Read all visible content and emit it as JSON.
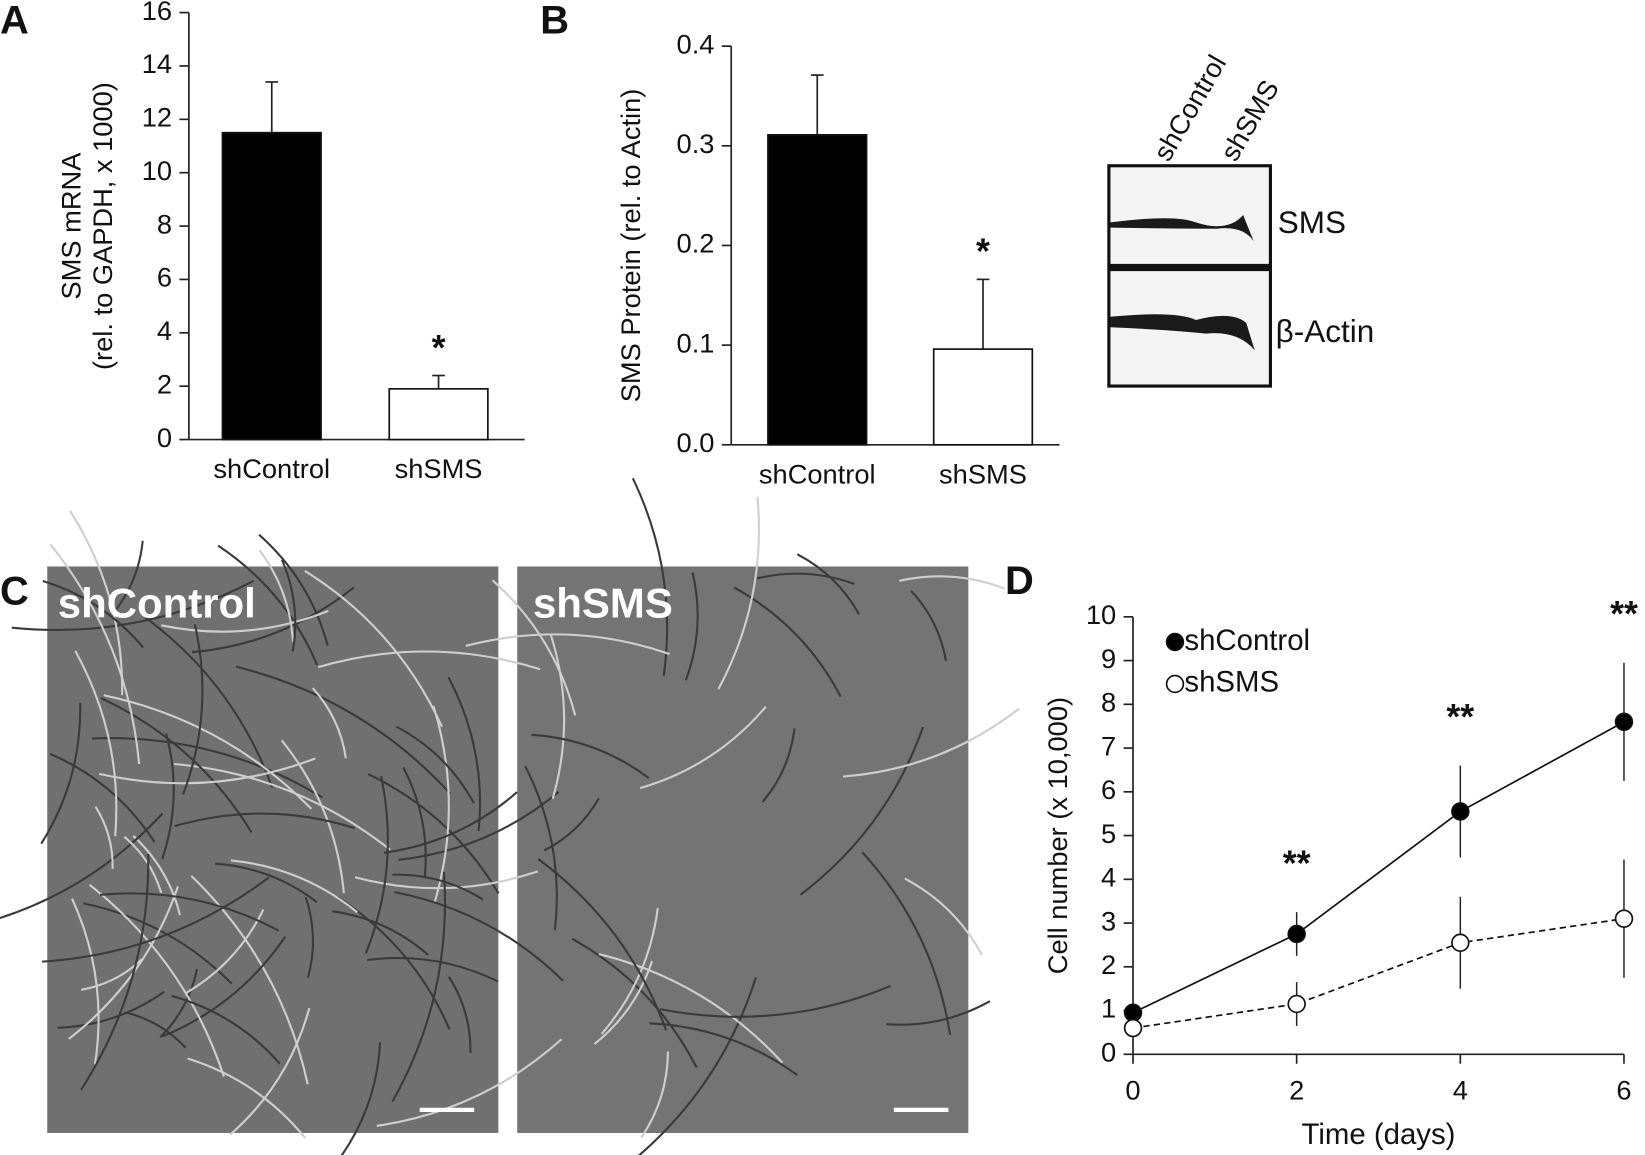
{
  "chart_data": [
    {
      "type": "bar",
      "panel_label": "A",
      "ylabel": [
        "SMS mRNA",
        "(rel. to GAPDH, x 1000)"
      ],
      "categories": [
        "shControl",
        "shSMS"
      ],
      "values": [
        11.5,
        1.9
      ],
      "errors": [
        1.9,
        0.5
      ],
      "colors": [
        "#000000",
        "#ffffff"
      ],
      "significance": [
        null,
        "*"
      ],
      "ylim": [
        0,
        16
      ],
      "yticks": [
        0,
        2,
        4,
        6,
        8,
        10,
        12,
        14,
        16
      ]
    },
    {
      "type": "bar",
      "panel_label": "B",
      "ylabel": [
        "SMS Protein (rel. to Actin)"
      ],
      "categories": [
        "shControl",
        "shSMS"
      ],
      "values": [
        0.311,
        0.096
      ],
      "errors": [
        0.06,
        0.07
      ],
      "colors": [
        "#000000",
        "#ffffff"
      ],
      "significance": [
        null,
        "*"
      ],
      "ylim": [
        0,
        0.4
      ],
      "yticks": [
        {
          "value": 0,
          "label": "0.0"
        },
        0.1,
        0.2,
        0.3,
        0.4
      ]
    },
    {
      "type": "line",
      "panel_label": "D",
      "xlabel": "Time (days)",
      "ylabel": [
        "Cell number (x 10,000)"
      ],
      "x": [
        0,
        2,
        4,
        6
      ],
      "xlim": [
        0,
        6
      ],
      "xticks": [
        0,
        2,
        4,
        6
      ],
      "ylim": [
        0,
        10
      ],
      "yticks": [
        0,
        1,
        2,
        3,
        4,
        5,
        6,
        7,
        8,
        9,
        10
      ],
      "legend": "upper left",
      "significance": [
        null,
        "**",
        "**",
        "**"
      ],
      "series": [
        {
          "name": "shControl",
          "color": "#000000",
          "line_style": "solid",
          "values": [
            0.95,
            2.75,
            5.55,
            7.6
          ],
          "errors": [
            0,
            0.5,
            1.05,
            1.35
          ]
        },
        {
          "name": "shSMS",
          "color": "#ffffff",
          "line_style": "dashed",
          "values": [
            0.6,
            1.15,
            2.55,
            3.1
          ],
          "errors": [
            0,
            0.5,
            1.05,
            1.35
          ]
        }
      ]
    }
  ],
  "blot": {
    "lanes": [
      "shControl",
      "shSMS"
    ],
    "bands": [
      "SMS",
      "β-Actin"
    ]
  },
  "micrographs": {
    "panel_label": "C",
    "images": [
      "shControl",
      "shSMS"
    ]
  }
}
